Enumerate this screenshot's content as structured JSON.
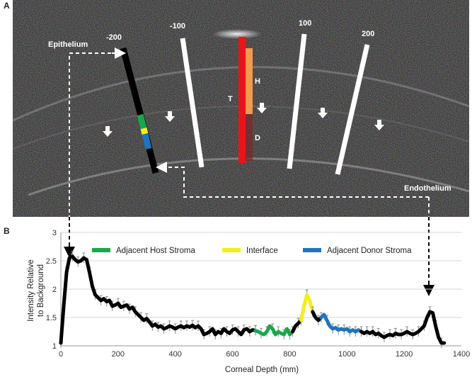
{
  "panels": {
    "a_label": "A",
    "b_label": "B"
  },
  "oct_image": {
    "position_labels": [
      "-200",
      "-100",
      "100",
      "200"
    ],
    "epithelium_label": "Epithelium",
    "endothelium_label": "Endothelium",
    "thickness_labels": {
      "total": "T",
      "host": "H",
      "donor": "D"
    },
    "colors": {
      "total_bar": "#e8141b",
      "host_bar": "#f29a4e",
      "donor_bar": "#7a2a2a",
      "adjacent_host": "#18a84a",
      "interface": "#f4ee1b",
      "adjacent_donor": "#1f74bd"
    }
  },
  "chart_data": {
    "type": "line",
    "title": "",
    "xlabel": "Corneal Depth (mm)",
    "ylabel": "Intensity Relative to Background",
    "ylabel_lines": [
      "Intensity Relative",
      "to Background"
    ],
    "xlim": [
      0,
      1400
    ],
    "ylim": [
      1,
      3
    ],
    "x_ticks": [
      0,
      200,
      400,
      600,
      800,
      1000,
      1200,
      1400
    ],
    "y_ticks": [
      1,
      1.5,
      2,
      2.5,
      3
    ],
    "grid": "horizontal",
    "legend_position": "top",
    "legend": [
      {
        "name": "Adjacent Host Stroma",
        "color": "#18a84a"
      },
      {
        "name": "Interface",
        "color": "#f4ee1b"
      },
      {
        "name": "Adjacent Donor Stroma",
        "color": "#1f74bd"
      }
    ],
    "series": [
      {
        "segment": "base",
        "color": "#000000",
        "x": [
          0,
          10,
          20,
          30,
          40,
          50,
          60,
          70,
          80,
          90,
          100,
          110,
          120,
          130,
          140,
          150,
          160,
          170,
          180,
          190,
          200,
          210,
          220,
          230,
          240,
          250,
          260,
          270,
          280,
          290,
          300,
          310,
          320,
          330,
          340,
          350,
          360,
          370,
          380,
          390,
          400,
          410,
          420,
          430,
          440,
          450,
          460,
          470,
          480,
          490,
          500,
          510,
          520,
          530,
          540,
          550,
          560,
          570,
          580,
          590,
          600,
          610,
          620,
          630,
          640,
          650,
          660,
          670,
          680
        ],
        "y": [
          1.05,
          1.7,
          2.3,
          2.55,
          2.58,
          2.52,
          2.48,
          2.5,
          2.55,
          2.52,
          2.3,
          2.05,
          1.9,
          1.85,
          1.8,
          1.83,
          1.78,
          1.8,
          1.7,
          1.72,
          1.75,
          1.68,
          1.7,
          1.72,
          1.65,
          1.68,
          1.6,
          1.55,
          1.5,
          1.45,
          1.48,
          1.42,
          1.35,
          1.38,
          1.33,
          1.35,
          1.3,
          1.32,
          1.35,
          1.33,
          1.3,
          1.33,
          1.35,
          1.32,
          1.35,
          1.33,
          1.36,
          1.32,
          1.35,
          1.3,
          1.2,
          1.22,
          1.25,
          1.3,
          1.2,
          1.25,
          1.22,
          1.3,
          1.25,
          1.22,
          1.28,
          1.3,
          1.25,
          1.2,
          1.28,
          1.3,
          1.25,
          1.28,
          1.27
        ]
      },
      {
        "segment": "adjacent_host",
        "color": "#18a84a",
        "x": [
          680,
          690,
          700,
          710,
          720,
          730,
          740,
          750,
          760,
          770,
          780,
          790,
          800,
          810
        ],
        "y": [
          1.27,
          1.25,
          1.22,
          1.2,
          1.25,
          1.35,
          1.3,
          1.2,
          1.25,
          1.22,
          1.2,
          1.3,
          1.2,
          1.25
        ]
      },
      {
        "segment": "base2",
        "color": "#000000",
        "x": [
          810,
          820,
          830,
          840
        ],
        "y": [
          1.25,
          1.35,
          1.4,
          1.45
        ]
      },
      {
        "segment": "interface",
        "color": "#f4ee1b",
        "x": [
          840,
          850,
          860,
          870,
          880
        ],
        "y": [
          1.45,
          1.7,
          1.9,
          1.8,
          1.6
        ]
      },
      {
        "segment": "base3",
        "color": "#000000",
        "x": [
          880,
          890,
          900,
          910
        ],
        "y": [
          1.6,
          1.5,
          1.45,
          1.5
        ]
      },
      {
        "segment": "adjacent_donor",
        "color": "#1f74bd",
        "x": [
          910,
          920,
          930,
          940,
          950,
          960,
          970,
          980,
          990,
          1000,
          1010,
          1020,
          1030,
          1040,
          1050
        ],
        "y": [
          1.5,
          1.55,
          1.45,
          1.35,
          1.3,
          1.32,
          1.28,
          1.3,
          1.28,
          1.3,
          1.25,
          1.28,
          1.25,
          1.28,
          1.25
        ]
      },
      {
        "segment": "base4",
        "color": "#000000",
        "x": [
          1050,
          1060,
          1070,
          1080,
          1090,
          1100,
          1110,
          1120,
          1130,
          1140,
          1150,
          1160,
          1170,
          1180,
          1190,
          1200,
          1210,
          1220,
          1230,
          1240,
          1250,
          1260,
          1270,
          1280,
          1290,
          1300,
          1310,
          1320,
          1330,
          1340
        ],
        "y": [
          1.25,
          1.22,
          1.25,
          1.22,
          1.25,
          1.2,
          1.22,
          1.18,
          1.15,
          1.18,
          1.2,
          1.18,
          1.22,
          1.2,
          1.2,
          1.22,
          1.25,
          1.22,
          1.2,
          1.22,
          1.25,
          1.3,
          1.35,
          1.5,
          1.6,
          1.58,
          1.35,
          1.15,
          1.05,
          1.05
        ]
      }
    ]
  }
}
